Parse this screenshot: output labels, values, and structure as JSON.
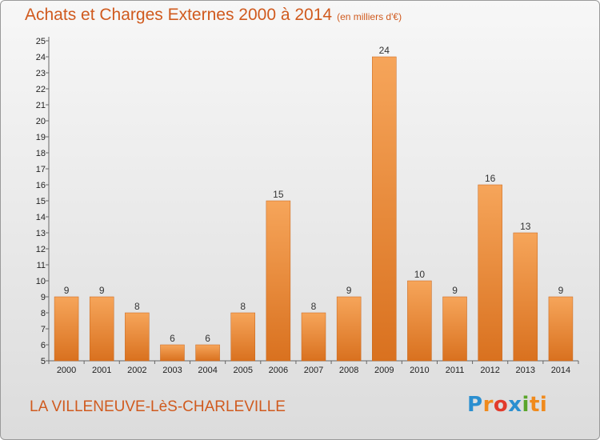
{
  "chart_data": {
    "type": "bar",
    "title": "Achats et Charges Externes 2000 à 2014",
    "unit": "(en milliers d'€)",
    "categories": [
      "2000",
      "2001",
      "2002",
      "2003",
      "2004",
      "2005",
      "2006",
      "2007",
      "2008",
      "2009",
      "2010",
      "2011",
      "2012",
      "2013",
      "2014"
    ],
    "values": [
      9,
      9,
      8,
      6,
      6,
      8,
      15,
      8,
      9,
      24,
      10,
      9,
      16,
      13,
      9
    ],
    "ylim": [
      5,
      25
    ],
    "yticks": [
      5,
      6,
      7,
      8,
      9,
      10,
      11,
      12,
      13,
      14,
      15,
      16,
      17,
      18,
      19,
      20,
      21,
      22,
      23,
      24,
      25
    ],
    "grid": false,
    "bar_color_light": "#f6a55a",
    "bar_color_dark": "#d9711f"
  },
  "footer": {
    "commune": "LA VILLENEUVE-LèS-CHARLEVILLE",
    "logo_letters": [
      "P",
      "r",
      "o",
      "x",
      "i",
      "ti"
    ]
  },
  "colors": {
    "title": "#d05a1e",
    "axis": "#666666"
  }
}
